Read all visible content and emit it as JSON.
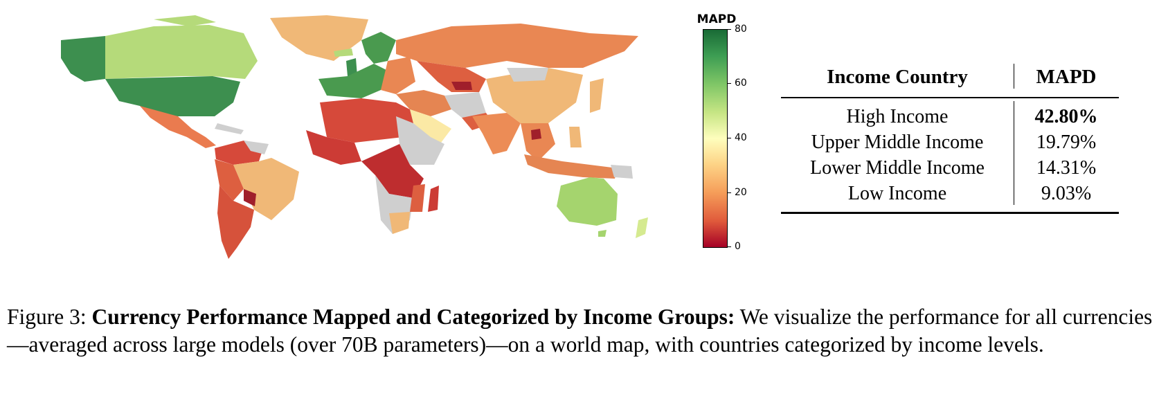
{
  "colorbar": {
    "title": "MAPD",
    "ticks": [
      "80",
      "60",
      "40",
      "20",
      "0"
    ],
    "colors": [
      "#1a6b36",
      "#7fc666",
      "#fefebd",
      "#f59d59",
      "#a50026"
    ]
  },
  "table": {
    "headers": [
      "Income Country",
      "MAPD"
    ],
    "rows": [
      {
        "group": "High Income",
        "mapd": "42.80%",
        "bold": true
      },
      {
        "group": "Upper Middle Income",
        "mapd": "19.79%",
        "bold": false
      },
      {
        "group": "Lower Middle Income",
        "mapd": "14.31%",
        "bold": false
      },
      {
        "group": "Low Income",
        "mapd": "9.03%",
        "bold": false
      }
    ]
  },
  "caption": {
    "label": "Figure 3: ",
    "title": "Currency Performance Mapped and Categorized by Income Groups:",
    "body": " We visualize the performance for all currencies—averaged across large models (over 70B parameters)—on a world map, with countries categorized by income levels."
  }
}
